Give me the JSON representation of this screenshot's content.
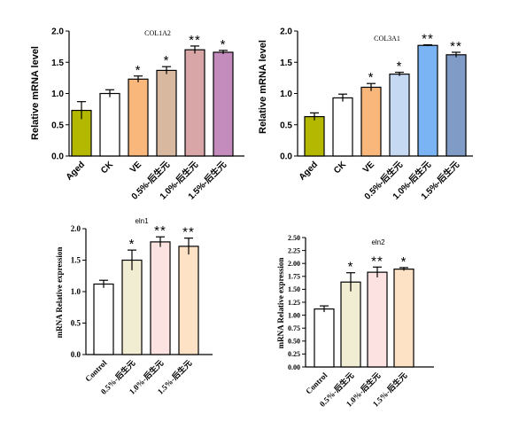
{
  "chart_data": [
    {
      "type": "bar",
      "title": "COL1A2",
      "ylabel": "Relative mRNA level",
      "ylim": [
        0,
        2.0
      ],
      "yticks": [
        "0.0",
        "0.5",
        "1.0",
        "1.5",
        "2.0"
      ],
      "categories": [
        "Aged",
        "CK",
        "VE",
        "0.5%-后生元",
        "1.0%-后生元",
        "1.5%-后生元"
      ],
      "values": [
        0.73,
        1.0,
        1.23,
        1.37,
        1.7,
        1.66
      ],
      "errors": [
        0.14,
        0.06,
        0.05,
        0.06,
        0.06,
        0.03
      ],
      "significance": [
        "",
        "",
        "*",
        "*",
        "**",
        "*"
      ],
      "colors": [
        "#b5b800",
        "#ffffff",
        "#f9b77b",
        "#d8b9a0",
        "#d8a6a6",
        "#c48bbd"
      ]
    },
    {
      "type": "bar",
      "title": "COL3A1",
      "ylabel": "Relative mRNA level",
      "ylim": [
        0,
        2.0
      ],
      "yticks": [
        "0.0",
        "0.5",
        "1.0",
        "1.5",
        "2.0"
      ],
      "categories": [
        "Aged",
        "CK",
        "VE",
        "0.5%-后生元",
        "1.0%-后生元",
        "1.5%-后生元"
      ],
      "values": [
        0.63,
        0.93,
        1.1,
        1.31,
        1.77,
        1.62
      ],
      "errors": [
        0.06,
        0.06,
        0.06,
        0.03,
        0.01,
        0.04
      ],
      "significance": [
        "",
        "",
        "*",
        "*",
        "**",
        "**"
      ],
      "colors": [
        "#b5b800",
        "#ffffff",
        "#f9b77b",
        "#c6d9f3",
        "#7ab4f4",
        "#7f9bc6"
      ]
    },
    {
      "type": "bar",
      "title": "eln1",
      "ylabel": "mRNA Relative expression",
      "ylim": [
        0,
        2.0
      ],
      "yticks": [
        "0.0",
        "0.5",
        "1.0",
        "1.5",
        "2.0"
      ],
      "categories": [
        "Control",
        "0.5%-后生元",
        "1.0%-后生元",
        "1.5%-后生元"
      ],
      "values": [
        1.12,
        1.5,
        1.79,
        1.72
      ],
      "errors": [
        0.06,
        0.16,
        0.08,
        0.13
      ],
      "significance": [
        "",
        "*",
        "**",
        "**"
      ],
      "colors": [
        "#ffffff",
        "#f1edd3",
        "#fde2e2",
        "#fde2c5"
      ]
    },
    {
      "type": "bar",
      "title": "eln2",
      "ylabel": "mRNA Relative expression",
      "ylim": [
        0,
        2.5
      ],
      "yticks": [
        "0.00",
        "0.25",
        "0.50",
        "0.75",
        "1.00",
        "1.25",
        "1.50",
        "1.75",
        "2.00",
        "2.25",
        "2.50"
      ],
      "categories": [
        "Control",
        "0.5%-后生元",
        "1.0%-后生元",
        "1.5%-后生元"
      ],
      "values": [
        1.12,
        1.64,
        1.83,
        1.89
      ],
      "errors": [
        0.06,
        0.18,
        0.1,
        0.03
      ],
      "significance": [
        "",
        "*",
        "**",
        "*"
      ],
      "colors": [
        "#ffffff",
        "#f1edd3",
        "#fde2e2",
        "#fde2c5"
      ]
    }
  ]
}
